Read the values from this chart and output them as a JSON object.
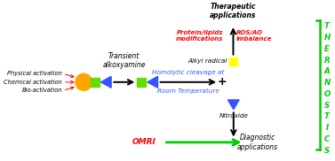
{
  "bg_color": "#ffffff",
  "theranostics_color": "#00cc00",
  "activation_labels": [
    "Physical activation",
    "Chemical activation",
    "Bio-activation"
  ],
  "activation_color": "#000000",
  "circle_color": "#ffa500",
  "green_sq_color": "#66dd00",
  "yellow_sq_color": "#ffff00",
  "blue_tri_color": "#3355ff",
  "homolytic_color": "#3355ff",
  "protein_color": "#ff0000",
  "ros_color": "#ff0000",
  "omri_color": "#ff0000",
  "green_arrow_color": "#00cc00",
  "transient_label": "Transient\nalkoxyamine",
  "homolytic_label": "Homolytic cleavage at",
  "room_temp_label": "Room Temperature",
  "alkyl_label": "Alkyl radical",
  "nitroxide_label": "Nitroxide",
  "therapeutic_label": "Therapeutic\napplications",
  "protein_label": "Protein/lipids\nmodifications",
  "ros_label": "ROS/AO\nimbalance",
  "diagnostic_label": "Diagnostic\napplications",
  "omri_label": "OMRI",
  "xlim": [
    0,
    10
  ],
  "ylim": [
    0,
    5
  ]
}
